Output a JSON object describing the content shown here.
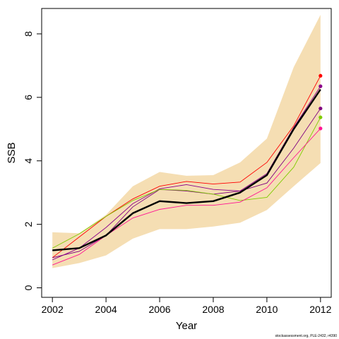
{
  "chart_data": {
    "type": "line",
    "title": "",
    "xlabel": "Year",
    "ylabel": "SSB",
    "xlim": [
      2001.6,
      2012.4
    ],
    "ylim": [
      -0.3,
      8.8
    ],
    "x_ticks": [
      2002,
      2004,
      2006,
      2008,
      2010,
      2012
    ],
    "y_ticks": [
      0,
      2,
      4,
      6,
      8
    ],
    "grid": false,
    "legend": "none",
    "footnote": "stockassessment.org, PLE-2432, r4390",
    "band": {
      "color": "#f5deb3",
      "x": [
        2002,
        2003,
        2004,
        2005,
        2006,
        2007,
        2008,
        2009,
        2010,
        2011,
        2012
      ],
      "lower": [
        0.62,
        0.78,
        1.02,
        1.55,
        1.85,
        1.85,
        1.93,
        2.05,
        2.45,
        3.2,
        3.93
      ],
      "upper": [
        1.75,
        1.72,
        2.3,
        3.2,
        3.65,
        3.53,
        3.55,
        3.95,
        4.7,
        6.95,
        8.6
      ]
    },
    "main": {
      "color": "#000000",
      "x": [
        2002,
        2003,
        2004,
        2005,
        2006,
        2007,
        2008,
        2009,
        2010,
        2011,
        2012
      ],
      "values": [
        1.18,
        1.25,
        1.65,
        2.35,
        2.73,
        2.67,
        2.73,
        3.0,
        3.55,
        5.0,
        6.25
      ]
    },
    "series": [
      {
        "color": "#ff0000",
        "x": [
          2002,
          2003,
          2004,
          2005,
          2006,
          2007,
          2008,
          2009,
          2010,
          2011,
          2012
        ],
        "values": [
          0.95,
          1.6,
          2.25,
          2.8,
          3.2,
          3.35,
          3.27,
          3.33,
          3.95,
          5.1,
          6.68
        ]
      },
      {
        "color": "#8b008b",
        "x": [
          2002,
          2003,
          2004,
          2005,
          2006,
          2007,
          2008,
          2009,
          2010,
          2011,
          2012
        ],
        "values": [
          0.88,
          1.25,
          1.9,
          2.65,
          3.12,
          3.25,
          3.1,
          3.05,
          3.6,
          5.05,
          6.35
        ]
      },
      {
        "color": "#800080",
        "x": [
          2002,
          2003,
          2004,
          2005,
          2006,
          2007,
          2008,
          2009,
          2010,
          2011,
          2012
        ],
        "values": [
          0.95,
          1.15,
          1.65,
          2.55,
          3.1,
          3.05,
          2.95,
          3.05,
          3.3,
          4.4,
          5.65
        ]
      },
      {
        "color": "#7fcc00",
        "x": [
          2002,
          2003,
          2004,
          2005,
          2006,
          2007,
          2008,
          2009,
          2010,
          2011,
          2012
        ],
        "values": [
          1.25,
          1.7,
          2.25,
          2.75,
          3.1,
          3.07,
          2.95,
          2.75,
          2.85,
          3.8,
          5.37
        ]
      },
      {
        "color": "#ff1493",
        "x": [
          2002,
          2003,
          2004,
          2005,
          2006,
          2007,
          2008,
          2009,
          2010,
          2011,
          2012
        ],
        "values": [
          0.72,
          1.05,
          1.65,
          2.2,
          2.47,
          2.6,
          2.6,
          2.7,
          3.15,
          4.1,
          5.02
        ]
      }
    ]
  }
}
